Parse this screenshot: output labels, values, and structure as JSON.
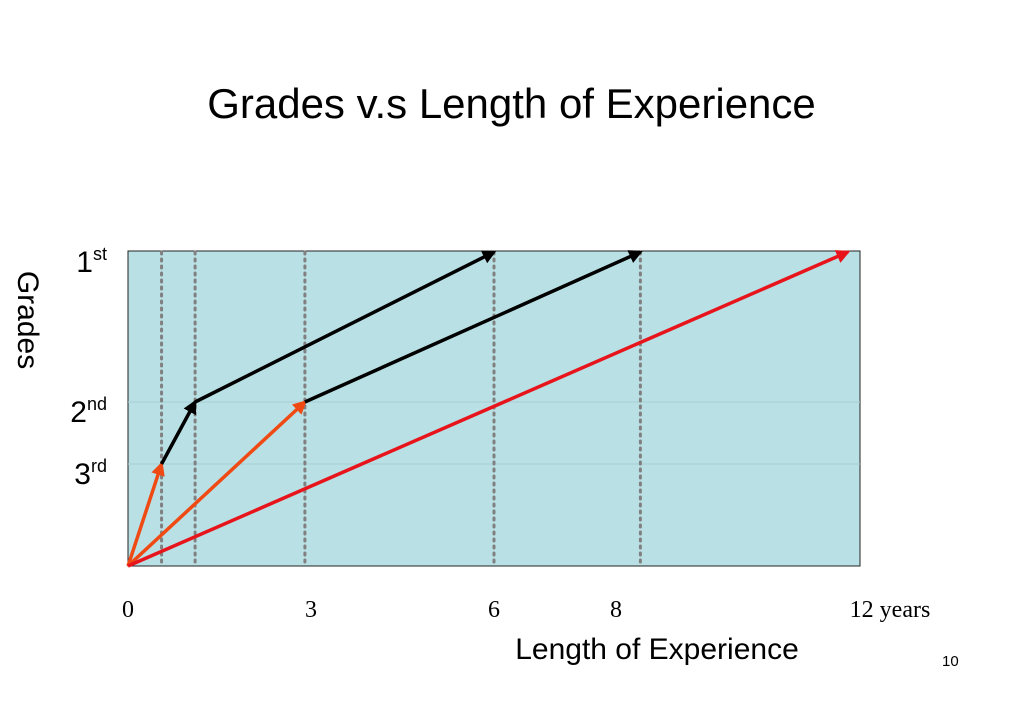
{
  "title": "Grades v.s Length of Experience",
  "page_number": "10",
  "chart_data": {
    "type": "line",
    "xlabel": "Length of Experience",
    "ylabel": "Grades",
    "x_ticks": [
      {
        "value": 0,
        "label": "0"
      },
      {
        "value": 3,
        "label": "3"
      },
      {
        "value": 6,
        "label": "6"
      },
      {
        "value": 8,
        "label": "8"
      },
      {
        "value": 12,
        "label": "12 years"
      }
    ],
    "y_ticks": [
      {
        "level": 3,
        "base": "1",
        "sup": "st"
      },
      {
        "level": 2,
        "base": "2",
        "sup": "nd"
      },
      {
        "level": 1,
        "base": "3",
        "sup": "rd"
      }
    ],
    "xlim": [
      0,
      12
    ],
    "ylim": [
      0,
      3
    ],
    "plot_background": "#b9e0e4",
    "colors": {
      "orange": "#f04a14",
      "red": "#e8141c",
      "black": "#000000",
      "dotted": "#808080",
      "grid": "#a6d0d4"
    },
    "arrows": [
      {
        "from": [
          0,
          0
        ],
        "to": [
          0.55,
          1
        ],
        "color": "orange"
      },
      {
        "from": [
          0.55,
          1
        ],
        "to": [
          1.1,
          2
        ],
        "color": "black"
      },
      {
        "from": [
          1.1,
          2
        ],
        "to": [
          6,
          3
        ],
        "color": "black"
      },
      {
        "from": [
          0,
          0
        ],
        "to": [
          2.9,
          2
        ],
        "color": "orange"
      },
      {
        "from": [
          2.9,
          2
        ],
        "to": [
          8.4,
          3
        ],
        "color": "black"
      },
      {
        "from": [
          0,
          0
        ],
        "to": [
          11.8,
          3
        ],
        "color": "red"
      }
    ],
    "dotted_lines_x": [
      0.55,
      1.1,
      2.9,
      6,
      8.4
    ]
  }
}
